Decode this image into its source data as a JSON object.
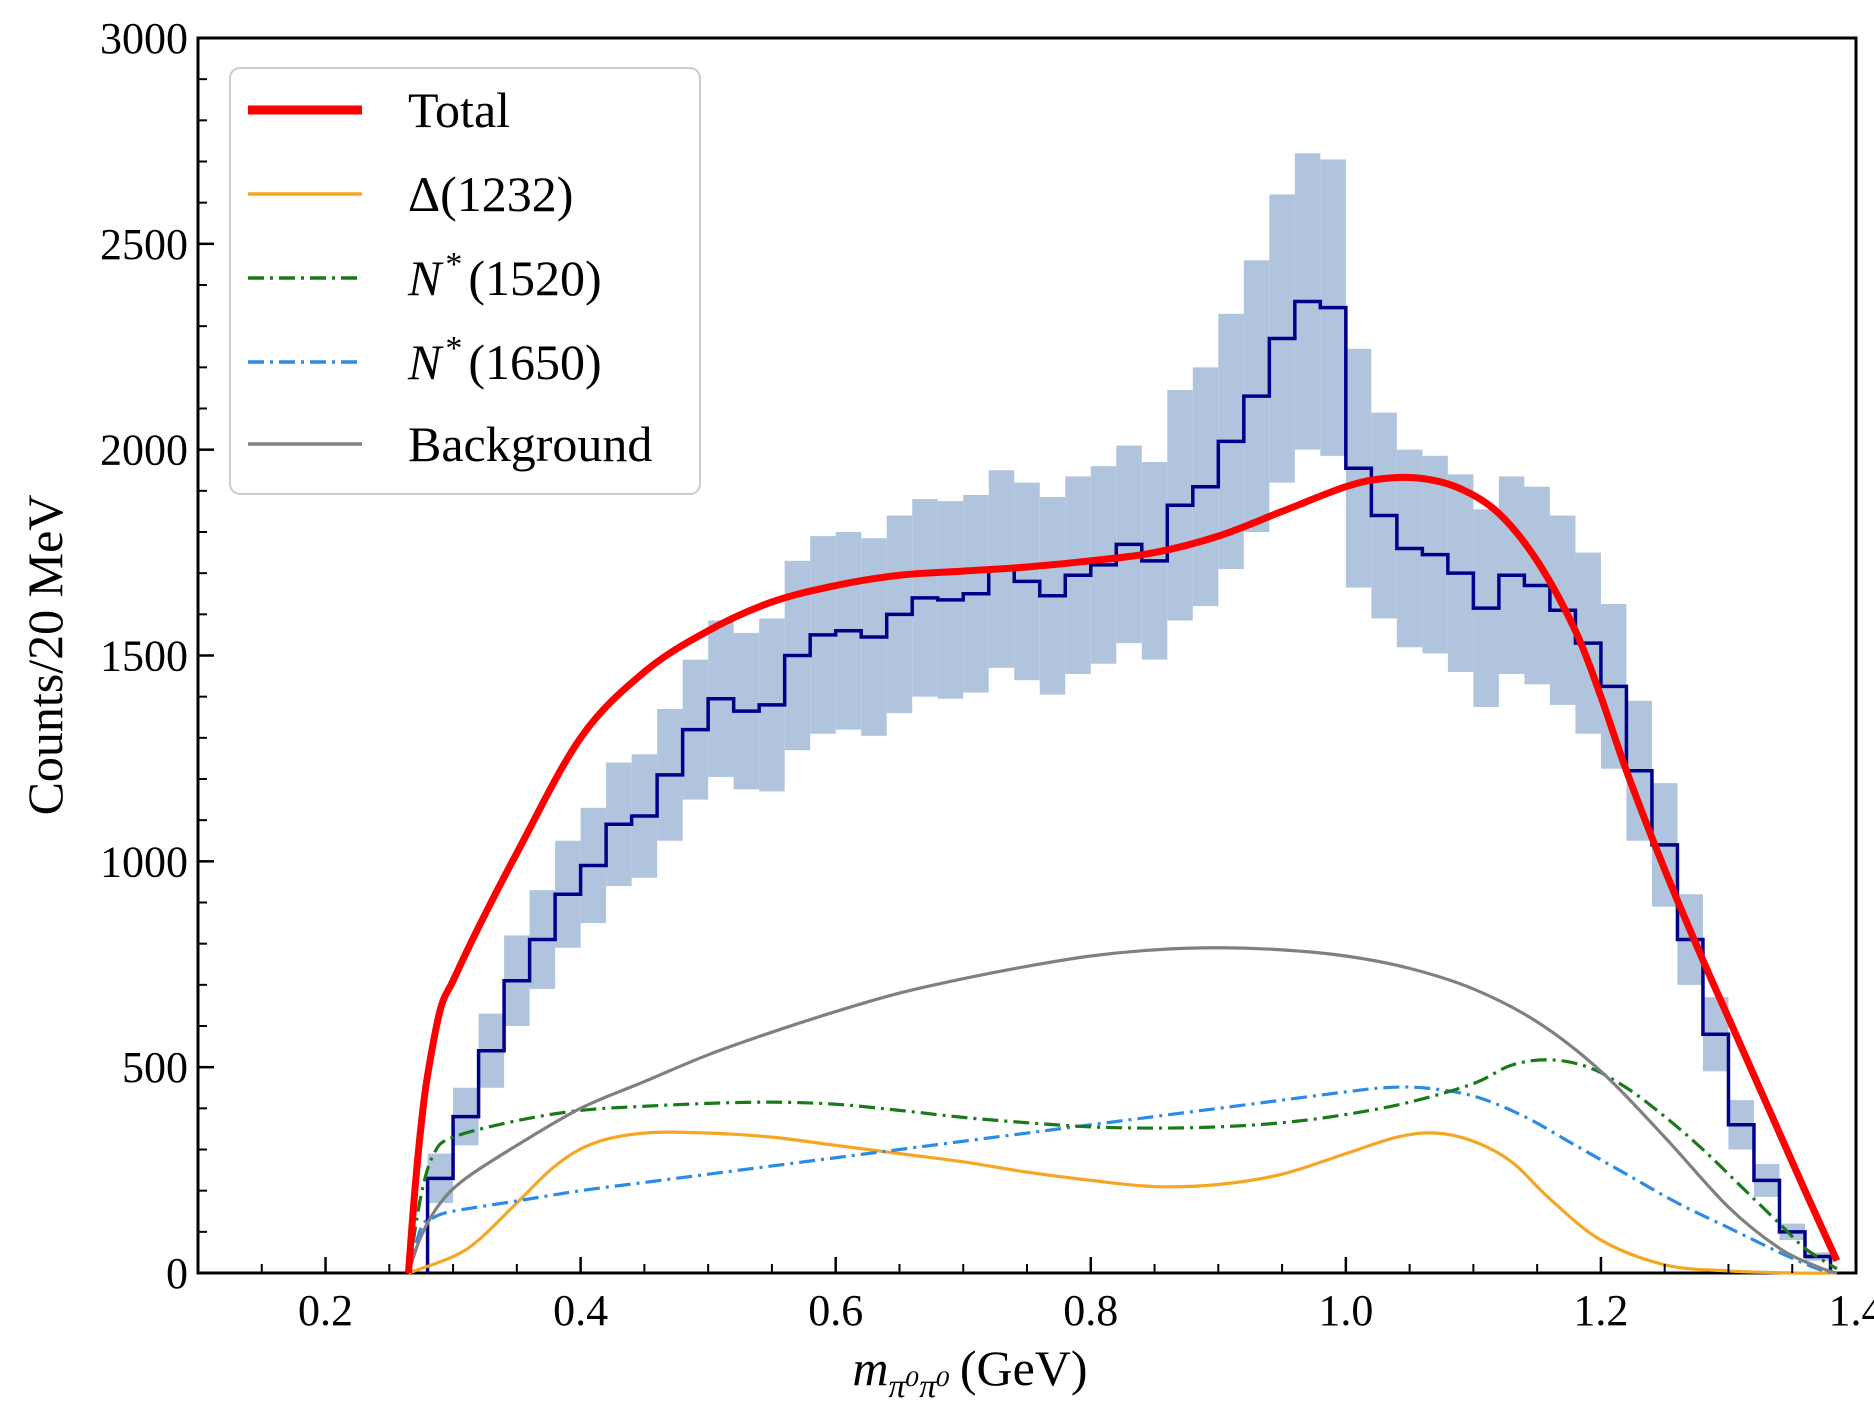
{
  "chart_data": {
    "type": "line",
    "xlabel": {
      "main": "m",
      "sub": "π⁰π⁰",
      "unit": "(GeV)"
    },
    "ylabel": "Counts/20 MeV",
    "xlim": [
      0.1,
      1.4
    ],
    "ylim": [
      0,
      3000
    ],
    "x_ticks": [
      0.2,
      0.4,
      0.6,
      0.8,
      1.0,
      1.2,
      1.4
    ],
    "x_tick_labels": [
      "0.2",
      "0.4",
      "0.6",
      "0.8",
      "1.0",
      "1.2",
      "1.4"
    ],
    "y_ticks": [
      0,
      500,
      1000,
      1500,
      2000,
      2500,
      3000
    ],
    "y_tick_labels": [
      "0",
      "500",
      "1000",
      "1500",
      "2000",
      "2500",
      "3000"
    ],
    "grid": false,
    "legend_position": "top-left",
    "legend": [
      {
        "key": "total",
        "label": "Total",
        "color": "#ff0000",
        "style": "solid-thick"
      },
      {
        "key": "delta",
        "label": "Δ(1232)",
        "color": "#f5a623",
        "style": "solid"
      },
      {
        "key": "n1520",
        "label_sym": "N",
        "label_sup": "*",
        "label_rest": "(1520)",
        "color": "#1a7a1a",
        "style": "dashdot"
      },
      {
        "key": "n1650",
        "label_sym": "N",
        "label_sup": "*",
        "label_rest": "(1650)",
        "color": "#2b8be6",
        "style": "dashdot"
      },
      {
        "key": "bkg",
        "label": "Background",
        "color": "#808080",
        "style": "solid"
      }
    ],
    "histogram": {
      "name": "data",
      "color": "#00008b",
      "band_color": "#b0c4de",
      "bin_width": 0.02,
      "bin_starts": [
        0.28,
        0.3,
        0.32,
        0.34,
        0.36,
        0.38,
        0.4,
        0.42,
        0.44,
        0.46,
        0.48,
        0.5,
        0.52,
        0.54,
        0.56,
        0.58,
        0.6,
        0.62,
        0.64,
        0.66,
        0.68,
        0.7,
        0.72,
        0.74,
        0.76,
        0.78,
        0.8,
        0.82,
        0.84,
        0.86,
        0.88,
        0.9,
        0.92,
        0.94,
        0.96,
        0.98,
        1.0,
        1.02,
        1.04,
        1.06,
        1.08,
        1.1,
        1.12,
        1.14,
        1.16,
        1.18,
        1.2,
        1.22,
        1.24,
        1.26,
        1.28,
        1.3,
        1.32,
        1.34,
        1.36
      ],
      "values": [
        230,
        380,
        540,
        710,
        810,
        920,
        990,
        1090,
        1110,
        1210,
        1320,
        1395,
        1365,
        1380,
        1500,
        1550,
        1560,
        1545,
        1600,
        1640,
        1635,
        1650,
        1710,
        1680,
        1645,
        1695,
        1720,
        1770,
        1730,
        1865,
        1910,
        2020,
        2130,
        2270,
        2360,
        2345,
        1955,
        1840,
        1760,
        1745,
        1700,
        1615,
        1695,
        1670,
        1610,
        1530,
        1425,
        1220,
        1040,
        810,
        580,
        360,
        225,
        100,
        40
      ],
      "band_halfwidth": [
        60,
        70,
        90,
        110,
        120,
        130,
        140,
        150,
        150,
        160,
        170,
        190,
        190,
        210,
        230,
        240,
        240,
        240,
        240,
        240,
        240,
        240,
        240,
        240,
        240,
        240,
        240,
        240,
        240,
        280,
        290,
        310,
        330,
        350,
        360,
        360,
        290,
        250,
        240,
        240,
        240,
        240,
        240,
        240,
        230,
        220,
        200,
        170,
        150,
        110,
        90,
        60,
        40,
        20,
        10
      ]
    },
    "series": [
      {
        "key": "total",
        "x": [
          0.265,
          0.27,
          0.275,
          0.28,
          0.29,
          0.3,
          0.32,
          0.35,
          0.4,
          0.45,
          0.5,
          0.55,
          0.6,
          0.65,
          0.7,
          0.75,
          0.8,
          0.85,
          0.9,
          0.95,
          1.0,
          1.03,
          1.06,
          1.09,
          1.12,
          1.15,
          1.18,
          1.2,
          1.22,
          1.25,
          1.28,
          1.3,
          1.32,
          1.34,
          1.36,
          1.385
        ],
        "y": [
          0,
          200,
          360,
          480,
          640,
          710,
          840,
          1020,
          1300,
          1460,
          1560,
          1630,
          1670,
          1695,
          1705,
          1715,
          1730,
          1750,
          1790,
          1850,
          1910,
          1930,
          1930,
          1905,
          1845,
          1730,
          1560,
          1400,
          1220,
          980,
          760,
          620,
          480,
          340,
          200,
          30
        ]
      },
      {
        "key": "delta",
        "x": [
          0.265,
          0.3,
          0.32,
          0.35,
          0.38,
          0.41,
          0.45,
          0.5,
          0.55,
          0.6,
          0.65,
          0.7,
          0.75,
          0.8,
          0.85,
          0.9,
          0.95,
          1.0,
          1.04,
          1.07,
          1.1,
          1.13,
          1.16,
          1.2,
          1.25,
          1.3,
          1.35,
          1.385
        ],
        "y": [
          0,
          40,
          80,
          170,
          260,
          315,
          340,
          340,
          330,
          310,
          290,
          270,
          245,
          225,
          210,
          215,
          240,
          290,
          330,
          340,
          320,
          270,
          180,
          80,
          20,
          5,
          0,
          0
        ]
      },
      {
        "key": "n1520",
        "x": [
          0.265,
          0.275,
          0.285,
          0.3,
          0.35,
          0.4,
          0.45,
          0.5,
          0.55,
          0.6,
          0.65,
          0.7,
          0.75,
          0.8,
          0.85,
          0.9,
          0.95,
          1.0,
          1.05,
          1.1,
          1.13,
          1.16,
          1.19,
          1.22,
          1.25,
          1.28,
          1.31,
          1.34,
          1.36,
          1.385
        ],
        "y": [
          0,
          190,
          290,
          330,
          370,
          395,
          405,
          412,
          415,
          410,
          395,
          378,
          365,
          355,
          352,
          355,
          365,
          385,
          415,
          460,
          505,
          518,
          500,
          450,
          380,
          300,
          210,
          120,
          60,
          10
        ]
      },
      {
        "key": "n1650",
        "x": [
          0.265,
          0.275,
          0.285,
          0.3,
          0.35,
          0.4,
          0.45,
          0.5,
          0.55,
          0.6,
          0.65,
          0.7,
          0.75,
          0.8,
          0.85,
          0.9,
          0.95,
          1.0,
          1.03,
          1.06,
          1.1,
          1.14,
          1.18,
          1.22,
          1.26,
          1.3,
          1.34,
          1.37,
          1.385
        ],
        "y": [
          0,
          110,
          135,
          150,
          175,
          200,
          220,
          240,
          260,
          280,
          300,
          320,
          340,
          360,
          380,
          400,
          420,
          440,
          450,
          450,
          430,
          380,
          310,
          240,
          170,
          110,
          50,
          10,
          0
        ]
      },
      {
        "key": "bkg",
        "x": [
          0.265,
          0.275,
          0.29,
          0.31,
          0.35,
          0.4,
          0.45,
          0.5,
          0.55,
          0.6,
          0.65,
          0.7,
          0.75,
          0.8,
          0.85,
          0.9,
          0.95,
          1.0,
          1.05,
          1.1,
          1.15,
          1.2,
          1.25,
          1.3,
          1.34,
          1.37,
          1.385
        ],
        "y": [
          0,
          90,
          170,
          230,
          310,
          400,
          465,
          530,
          585,
          635,
          680,
          715,
          745,
          770,
          785,
          790,
          785,
          770,
          740,
          690,
          610,
          490,
          330,
          160,
          60,
          15,
          0
        ]
      }
    ]
  }
}
